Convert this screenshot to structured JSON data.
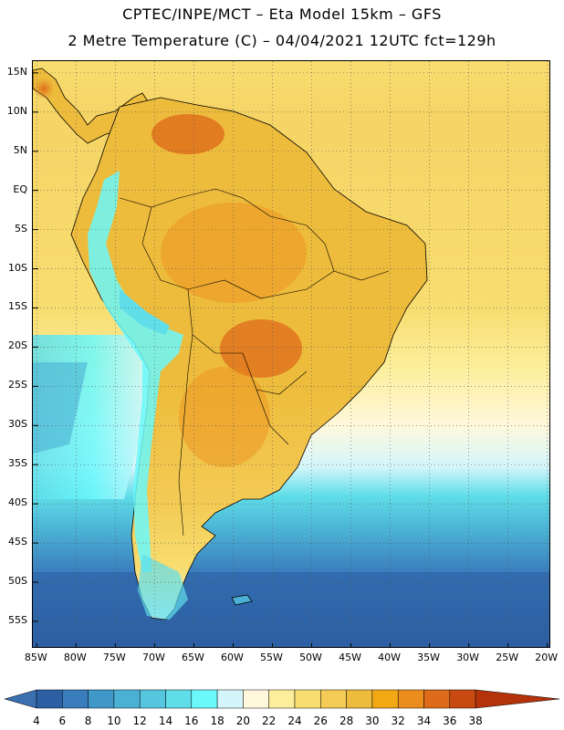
{
  "title_line1": "CPTEC/INPE/MCT –  Eta Model 15km – GFS",
  "title_line2": "2 Metre Temperature (C) – 04/04/2021 12UTC fct=129h",
  "axes": {
    "lon_ticks": [
      "85W",
      "80W",
      "75W",
      "70W",
      "65W",
      "60W",
      "55W",
      "50W",
      "45W",
      "40W",
      "35W",
      "30W",
      "25W",
      "20W"
    ],
    "lat_ticks": [
      "15N",
      "10N",
      "5N",
      "EQ",
      "5S",
      "10S",
      "15S",
      "20S",
      "25S",
      "30S",
      "35S",
      "40S",
      "45S",
      "50S",
      "55S"
    ],
    "lon_range_deg": [
      -85.5,
      -19.5
    ],
    "lat_range_deg": [
      16.5,
      -58.5
    ]
  },
  "colorbar": {
    "labels": [
      "4",
      "6",
      "8",
      "10",
      "12",
      "14",
      "16",
      "18",
      "20",
      "22",
      "24",
      "26",
      "28",
      "30",
      "32",
      "34",
      "36",
      "38"
    ],
    "colors": [
      "#2c5fa3",
      "#3a7dbd",
      "#3f98c8",
      "#4bb1d4",
      "#55c6dd",
      "#5fdde8",
      "#6af8fb",
      "#d4f6fb",
      "#fff8dc",
      "#fcee9a",
      "#f8dd70",
      "#f3cb55",
      "#eebc3c",
      "#f1a812",
      "#ea8d1d",
      "#de6b1a",
      "#c94a10",
      "#b4330a"
    ],
    "under_color": "#3a6fb0",
    "over_color": "#b4330a"
  },
  "legend_colors": {
    "ocean_deep": "#2c5fa3",
    "ocean_south": "#4aaed4",
    "ocean_cyan": "#5fdde8",
    "ocean_pale": "#fcee9a",
    "ocean_tropical": "#f6d465",
    "land_hot": "#eebc3c",
    "land_very_hot": "#e08a22",
    "andes_cold": "#6af8fb"
  }
}
